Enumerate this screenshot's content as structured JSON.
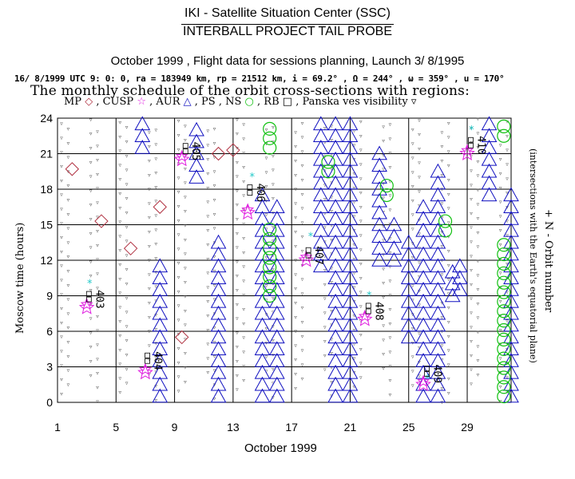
{
  "header": {
    "title1": "IKI - Satellite Situation Center (SSC)",
    "title2": "INTERBALL PROJECT TAIL PROBE",
    "title3": "October  1999 ,  Flight data for sessions planning,  Launch  3/ 8/1995",
    "params": "16/ 8/1999 UTC  9: 0: 0, ra = 183949 km, rp =  21512 km, i = 69.2° , Ω = 244° , ω = 359° , u = 170°",
    "schedule": "The monthly schedule of the orbit cross-sections with regions:"
  },
  "legend": {
    "items": [
      {
        "label": "MP",
        "sym": "◇",
        "color": "#b03040"
      },
      {
        "label": "CUSP",
        "sym": "☆",
        "color": "#e020e0"
      },
      {
        "label": "AUR",
        "sym": "△",
        "color": "#1010c0"
      },
      {
        "label": "PS",
        "sym": "",
        "color": "#000000"
      },
      {
        "label": "NS",
        "sym": "○",
        "color": "#10c010"
      },
      {
        "label": "RB",
        "sym": "□",
        "color": "#000000"
      },
      {
        "label": "Panska ves visibility",
        "sym": "▿",
        "color": "#000000"
      }
    ],
    "aur_star_color": "#20c8c8"
  },
  "axes": {
    "ylabel": "Moscow time (hours)",
    "xlabel": "October 1999",
    "rlabel1": "+ N - Orbit number",
    "rlabel2": "(intersections with the Earth's equatorial plane)"
  },
  "chart_data": {
    "type": "scatter",
    "title": "The monthly schedule of the orbit cross-sections with regions",
    "xlabel": "October 1999",
    "ylabel": "Moscow time (hours)",
    "xlim": [
      1,
      32
    ],
    "ylim": [
      0,
      24
    ],
    "xticks": [
      1,
      5,
      9,
      13,
      17,
      21,
      25,
      29
    ],
    "yticks": [
      0,
      3,
      6,
      9,
      12,
      15,
      18,
      21,
      24
    ],
    "grid": true,
    "orbits": [
      {
        "number": "403",
        "day": 3.2,
        "hour": 9.5
      },
      {
        "number": "404",
        "day": 7.2,
        "hour": 4.3
      },
      {
        "number": "405",
        "day": 9.8,
        "hour": 22.0
      },
      {
        "number": "406",
        "day": 14.2,
        "hour": 18.5
      },
      {
        "number": "407",
        "day": 18.2,
        "hour": 13.2
      },
      {
        "number": "408",
        "day": 22.3,
        "hour": 8.5
      },
      {
        "number": "409",
        "day": 26.3,
        "hour": 3.2
      },
      {
        "number": "410",
        "day": 29.3,
        "hour": 22.5
      }
    ],
    "mp": [
      [
        2.0,
        19.7
      ],
      [
        4.0,
        15.3
      ],
      [
        6.0,
        13.0
      ],
      [
        8.0,
        16.5
      ],
      [
        9.5,
        5.5
      ],
      [
        12.0,
        21.0
      ],
      [
        13.0,
        21.3
      ]
    ],
    "cusp": [
      [
        3.0,
        8.0
      ],
      [
        7.0,
        2.5
      ],
      [
        9.5,
        20.5
      ],
      [
        14.0,
        16.0
      ],
      [
        18.0,
        12.0
      ],
      [
        22.0,
        7.0
      ],
      [
        26.0,
        1.5
      ],
      [
        29.0,
        21.0
      ]
    ],
    "aur_columns": [
      {
        "day": 6.8,
        "from": 21.5,
        "to": 23.5
      },
      {
        "day": 8.0,
        "from": 0.5,
        "to": 11.5
      },
      {
        "day": 10.5,
        "from": 19.0,
        "to": 23.5
      },
      {
        "day": 12.0,
        "from": 0.5,
        "to": 13.5
      },
      {
        "day": 15.0,
        "from": 0.5,
        "to": 17.5
      },
      {
        "day": 16.0,
        "from": 0.5,
        "to": 16.5
      },
      {
        "day": 19.0,
        "from": 11.5,
        "to": 23.5
      },
      {
        "day": 20.0,
        "from": 0.5,
        "to": 23.5
      },
      {
        "day": 21.0,
        "from": 0.5,
        "to": 23.5
      },
      {
        "day": 23.0,
        "from": 12.0,
        "to": 21.5
      },
      {
        "day": 24.0,
        "from": 12.0,
        "to": 15.5
      },
      {
        "day": 25.0,
        "from": 5.5,
        "to": 13.5
      },
      {
        "day": 26.0,
        "from": 0.5,
        "to": 16.5
      },
      {
        "day": 27.0,
        "from": 0.5,
        "to": 20.0
      },
      {
        "day": 28.0,
        "from": 9.0,
        "to": 11.5
      },
      {
        "day": 28.5,
        "from": 9.5,
        "to": 12.0
      },
      {
        "day": 30.5,
        "from": 17.5,
        "to": 23.5
      },
      {
        "day": 32.0,
        "from": 0.5,
        "to": 17.5
      }
    ],
    "ns_columns": [
      {
        "day": 15.5,
        "from": 21.5,
        "to": 23.5
      },
      {
        "day": 15.5,
        "from": 9.0,
        "to": 15.0
      },
      {
        "day": 19.5,
        "from": 19.5,
        "to": 20.5
      },
      {
        "day": 23.5,
        "from": 17.5,
        "to": 18.5
      },
      {
        "day": 27.5,
        "from": 14.5,
        "to": 16.0
      },
      {
        "day": 31.5,
        "from": 22.5,
        "to": 23.5
      },
      {
        "day": 31.5,
        "from": 0.5,
        "to": 13.5
      }
    ],
    "aur_star_points": [
      [
        3.2,
        10.0
      ],
      [
        14.3,
        19.0
      ],
      [
        18.3,
        14.0
      ],
      [
        22.3,
        9.0
      ],
      [
        26.3,
        2.0
      ],
      [
        29.3,
        23.0
      ]
    ]
  },
  "colors": {
    "mp": "#b03040",
    "cusp": "#e020e0",
    "aur": "#1010c0",
    "ns": "#10c010",
    "aurstar": "#20c8c8",
    "grid": "#000000",
    "small": "#404040"
  }
}
